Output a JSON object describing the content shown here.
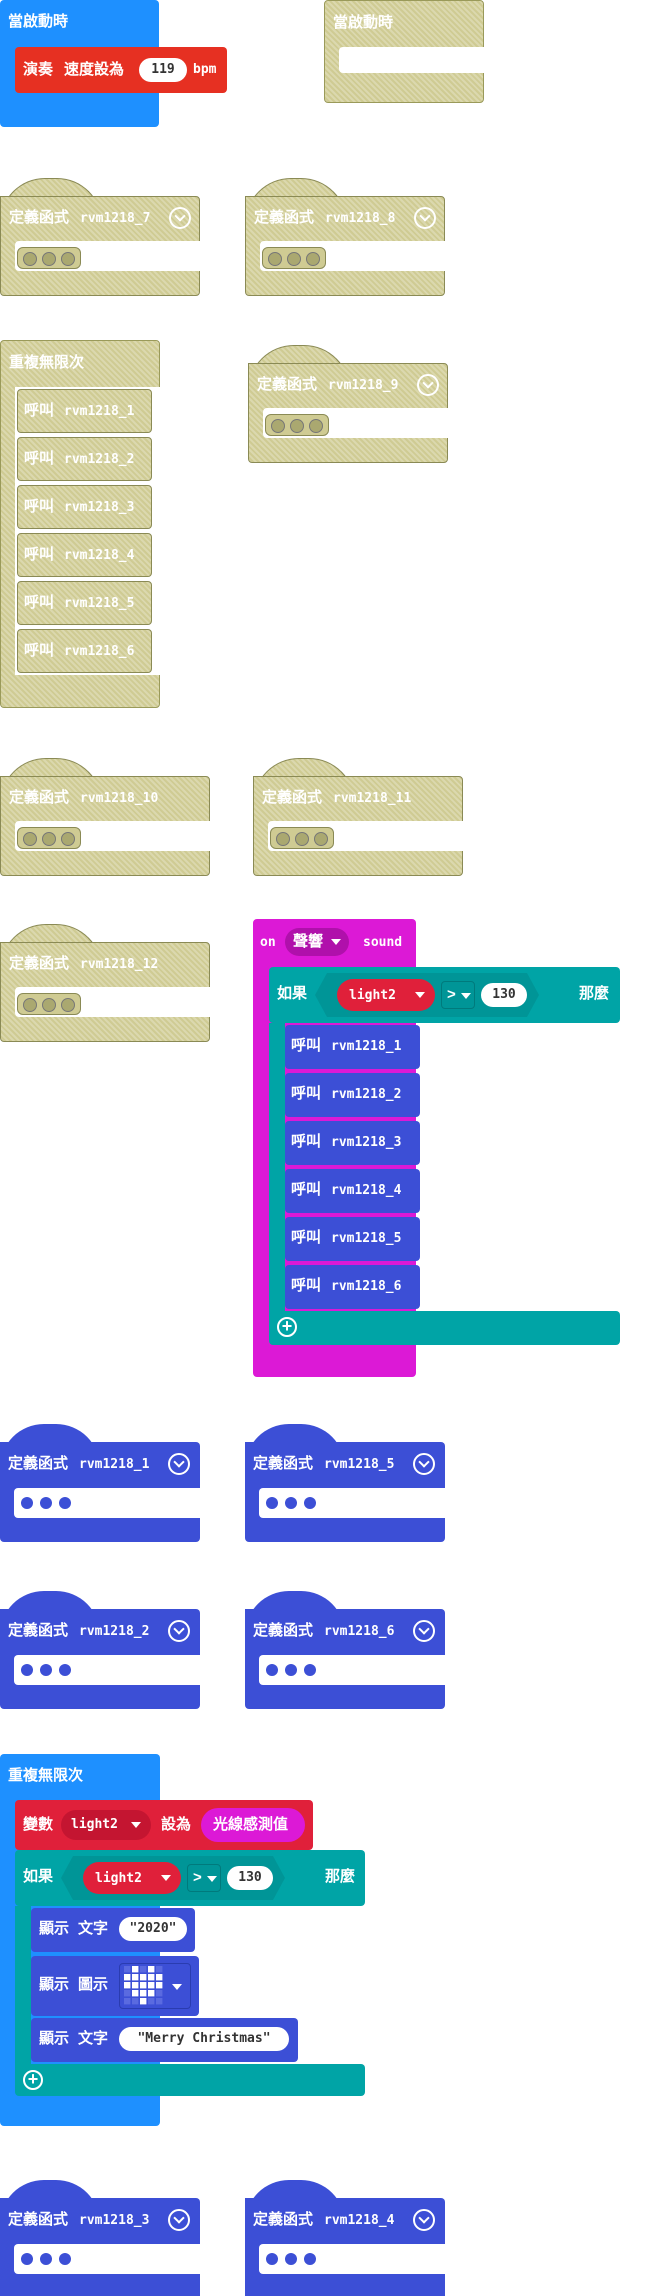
{
  "on_start": {
    "label": "當啟動時",
    "play": "演奏",
    "tempo": "速度設為",
    "value": "119",
    "unit": "bpm"
  },
  "on_start_disabled": {
    "label": "當啟動時"
  },
  "define_label": "定義函式",
  "forever": {
    "label": "重複無限次"
  },
  "call_label": "呼叫",
  "functions": {
    "f1": "rvm1218_1",
    "f2": "rvm1218_2",
    "f3": "rvm1218_3",
    "f4": "rvm1218_4",
    "f5": "rvm1218_5",
    "f6": "rvm1218_6",
    "f7": "rvm1218_7",
    "f8": "rvm1218_8",
    "f9": "rvm1218_9",
    "f10": "rvm1218_10",
    "f11": "rvm1218_11",
    "f12": "rvm1218_12"
  },
  "on_sound": {
    "on": "on",
    "dropdown": "聲響",
    "sound": "sound"
  },
  "if_block": {
    "if": "如果",
    "var": "light2",
    "op": ">",
    "value": "130",
    "then": "那麼"
  },
  "forever2": {
    "label": "重複無限次",
    "set": "變數",
    "var": "light2",
    "to": "設為",
    "sensor": "光線感測值",
    "if": "如果",
    "op": ">",
    "value": "130",
    "then": "那麼",
    "show": "顯示",
    "text": "文字",
    "icon": "圖示",
    "text1": "\"2020\"",
    "text2": "\"Merry Christmas\""
  },
  "colors": {
    "event": "#1e90ff",
    "function": "#3c4fd6",
    "logic": "#00a4a6",
    "input": "#dc19d6",
    "variable": "#e0203a",
    "music": "#e63022",
    "disabled": "#cfcb93"
  }
}
